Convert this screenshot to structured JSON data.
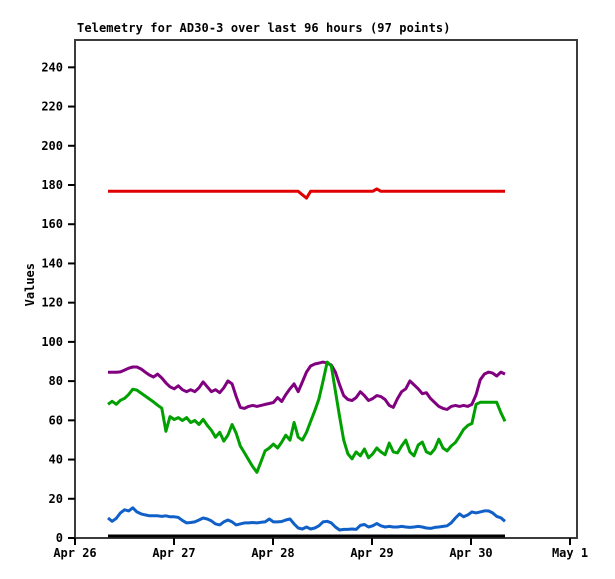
{
  "window": {
    "background": "#ffffff"
  },
  "chart_data": {
    "type": "line",
    "title": "Telemetry for AD30-3 over last 96 hours (97 points)",
    "xlabel": "",
    "ylabel": "Values",
    "points": 97,
    "grid": "off",
    "legend": "none",
    "ylim": [
      0,
      254
    ],
    "y_ticks": [
      0,
      20,
      40,
      60,
      80,
      100,
      120,
      140,
      160,
      180,
      200,
      220,
      240
    ],
    "x_axis": {
      "tick_labels": [
        "Apr 26",
        "Apr 27",
        "Apr 28",
        "Apr 29",
        "Apr 30",
        "May 1"
      ],
      "ticks_hours": [
        0,
        24,
        48,
        72,
        96,
        120
      ],
      "domain_hours": [
        0,
        121.7
      ],
      "data_start_hour": 8,
      "hours_per_point": 1
    },
    "colors": {
      "border": "#3c3c3c",
      "tick": "#000000"
    },
    "series": [
      {
        "name": "red-flat",
        "color": "#e00000",
        "width": 3,
        "values": [
          176.8,
          176.8,
          176.8,
          176.8,
          176.8,
          176.8,
          176.8,
          176.8,
          176.8,
          176.8,
          176.8,
          176.8,
          176.8,
          176.8,
          176.8,
          176.8,
          176.8,
          176.8,
          176.8,
          176.8,
          176.8,
          176.8,
          176.8,
          176.8,
          176.8,
          176.8,
          176.8,
          176.8,
          176.8,
          176.8,
          176.8,
          176.8,
          176.8,
          176.8,
          176.8,
          176.8,
          176.8,
          176.8,
          176.8,
          176.8,
          176.8,
          176.8,
          176.8,
          176.8,
          176.8,
          176.8,
          176.8,
          175.0,
          173.3,
          176.8,
          176.8,
          176.8,
          176.8,
          176.8,
          176.8,
          176.8,
          176.8,
          176.8,
          176.8,
          176.8,
          176.8,
          176.8,
          176.8,
          176.8,
          176.8,
          178.0,
          176.8,
          176.8,
          176.8,
          176.8,
          176.8,
          176.8,
          176.8,
          176.8,
          176.8,
          176.8,
          176.8,
          176.8,
          176.8,
          176.8,
          176.8,
          176.8,
          176.8,
          176.8,
          176.8,
          176.8,
          176.8,
          176.8,
          176.8,
          176.8,
          176.8,
          176.8,
          176.8,
          176.8,
          176.8,
          176.8,
          176.8
        ]
      },
      {
        "name": "purple",
        "color": "#800080",
        "width": 3,
        "values": [
          84.5,
          84.5,
          84.5,
          84.7,
          85.6,
          86.6,
          87.2,
          87.2,
          86.2,
          84.6,
          83.1,
          82.1,
          83.6,
          81.6,
          79.1,
          77.1,
          76.1,
          77.6,
          75.6,
          74.6,
          75.6,
          74.6,
          76.6,
          79.6,
          77.1,
          74.6,
          75.6,
          74.1,
          76.6,
          80.1,
          78.6,
          72.1,
          66.6,
          66.1,
          67.1,
          67.6,
          67.1,
          67.6,
          68.1,
          68.6,
          69.1,
          71.6,
          69.6,
          73.1,
          76.1,
          78.6,
          74.6,
          79.6,
          84.6,
          87.7,
          88.7,
          89.2,
          89.7,
          89.2,
          88.2,
          84.6,
          78.1,
          72.6,
          70.6,
          70.1,
          71.6,
          74.6,
          72.6,
          70.1,
          71.1,
          72.6,
          72.1,
          70.6,
          67.6,
          66.6,
          71.1,
          74.6,
          76.1,
          80.1,
          78.1,
          76.1,
          73.6,
          74.1,
          71.1,
          69.1,
          67.1,
          66.1,
          65.6,
          67.1,
          67.6,
          67.1,
          67.6,
          67.1,
          68.1,
          73.1,
          80.6,
          83.6,
          84.6,
          84.1,
          82.6,
          84.6,
          83.6
        ]
      },
      {
        "name": "green",
        "color": "#00a000",
        "width": 3,
        "values": [
          68.2,
          69.7,
          68.2,
          70.2,
          71.2,
          73.2,
          75.9,
          75.4,
          73.9,
          72.4,
          70.9,
          69.4,
          67.7,
          66.2,
          54.4,
          61.9,
          60.4,
          61.4,
          59.9,
          61.4,
          58.9,
          59.9,
          57.9,
          60.5,
          57.4,
          54.9,
          51.4,
          53.9,
          49.4,
          52.4,
          57.9,
          53.4,
          46.9,
          43.4,
          39.9,
          36.4,
          33.5,
          38.9,
          44.4,
          45.9,
          47.9,
          45.9,
          48.9,
          52.4,
          49.9,
          58.9,
          51.4,
          49.9,
          53.9,
          59.4,
          64.9,
          70.9,
          79.9,
          89.7,
          87.7,
          74.9,
          61.9,
          49.9,
          42.9,
          40.4,
          43.9,
          41.9,
          45.4,
          40.9,
          42.9,
          45.9,
          43.9,
          42.4,
          48.4,
          43.9,
          43.4,
          46.9,
          49.9,
          43.9,
          41.9,
          47.4,
          48.9,
          43.9,
          42.9,
          45.4,
          50.4,
          45.9,
          44.4,
          46.9,
          48.7,
          51.9,
          55.4,
          57.4,
          58.4,
          68.2,
          69.2,
          69.2,
          69.2,
          69.2,
          69.2,
          63.9,
          59.5
        ]
      },
      {
        "name": "blue",
        "color": "#1060c8",
        "width": 3,
        "values": [
          10.2,
          8.5,
          10.0,
          12.8,
          14.4,
          13.8,
          15.4,
          13.3,
          12.3,
          11.8,
          11.3,
          11.3,
          11.3,
          11.0,
          11.3,
          10.8,
          10.8,
          10.5,
          9.0,
          7.7,
          7.9,
          8.2,
          9.2,
          10.2,
          9.7,
          8.7,
          7.2,
          6.7,
          8.2,
          9.2,
          8.2,
          6.7,
          7.2,
          7.7,
          7.7,
          7.9,
          7.7,
          8.0,
          8.2,
          9.7,
          8.2,
          8.2,
          8.4,
          9.2,
          9.7,
          7.2,
          5.1,
          4.6,
          5.6,
          4.6,
          5.1,
          6.2,
          8.2,
          8.5,
          7.7,
          5.6,
          4.1,
          4.4,
          4.4,
          4.6,
          4.4,
          6.4,
          6.9,
          5.6,
          6.2,
          7.4,
          6.2,
          5.6,
          5.9,
          5.6,
          5.6,
          5.9,
          5.6,
          5.4,
          5.6,
          5.9,
          5.6,
          5.1,
          4.9,
          5.4,
          5.6,
          5.9,
          6.2,
          7.7,
          10.2,
          12.3,
          10.8,
          11.8,
          13.3,
          12.8,
          13.3,
          13.8,
          13.8,
          12.8,
          11.0,
          10.3,
          8.5
        ]
      },
      {
        "name": "black-baseline",
        "color": "#000000",
        "width": 3,
        "values": [
          1,
          1,
          1,
          1,
          1,
          1,
          1,
          1,
          1,
          1,
          1,
          1,
          1,
          1,
          1,
          1,
          1,
          1,
          1,
          1,
          1,
          1,
          1,
          1,
          1,
          1,
          1,
          1,
          1,
          1,
          1,
          1,
          1,
          1,
          1,
          1,
          1,
          1,
          1,
          1,
          1,
          1,
          1,
          1,
          1,
          1,
          1,
          1,
          1,
          1,
          1,
          1,
          1,
          1,
          1,
          1,
          1,
          1,
          1,
          1,
          1,
          1,
          1,
          1,
          1,
          1,
          1,
          1,
          1,
          1,
          1,
          1,
          1,
          1,
          1,
          1,
          1,
          1,
          1,
          1,
          1,
          1,
          1,
          1,
          1,
          1,
          1,
          1,
          1,
          1,
          1,
          1,
          1,
          1,
          1,
          1,
          1
        ]
      }
    ]
  }
}
